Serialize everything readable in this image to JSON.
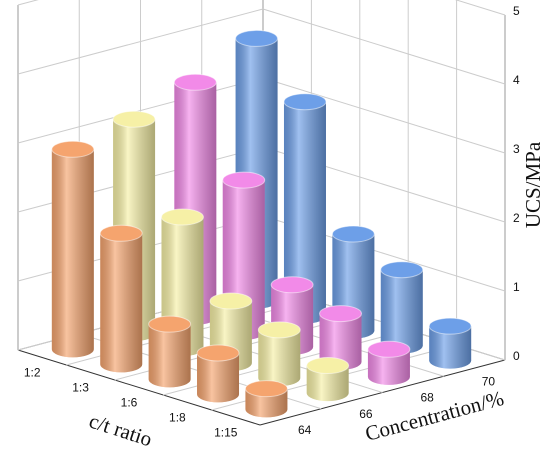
{
  "chart_data": {
    "type": "bar3d",
    "x_label": "c/t ratio",
    "y_label": "Concentration/%",
    "z_label": "UCS/MPa",
    "categories": [
      "1:2",
      "1:3",
      "1:6",
      "1:8",
      "1:15"
    ],
    "series": [
      {
        "name": "64",
        "color": "#f5a46e",
        "values": [
          2.9,
          1.9,
          0.8,
          0.6,
          0.3
        ]
      },
      {
        "name": "66",
        "color": "#f6f0a6",
        "values": [
          3.1,
          1.9,
          0.9,
          0.7,
          0.4
        ]
      },
      {
        "name": "68",
        "color": "#f28ae8",
        "values": [
          3.4,
          2.2,
          0.9,
          0.7,
          0.4
        ]
      },
      {
        "name": "70",
        "color": "#6d9fe8",
        "values": [
          3.8,
          3.1,
          1.4,
          1.1,
          0.5
        ]
      }
    ],
    "zlim": [
      0,
      5
    ],
    "zticks": [
      0,
      1,
      2,
      3,
      4,
      5
    ],
    "grid": true
  }
}
